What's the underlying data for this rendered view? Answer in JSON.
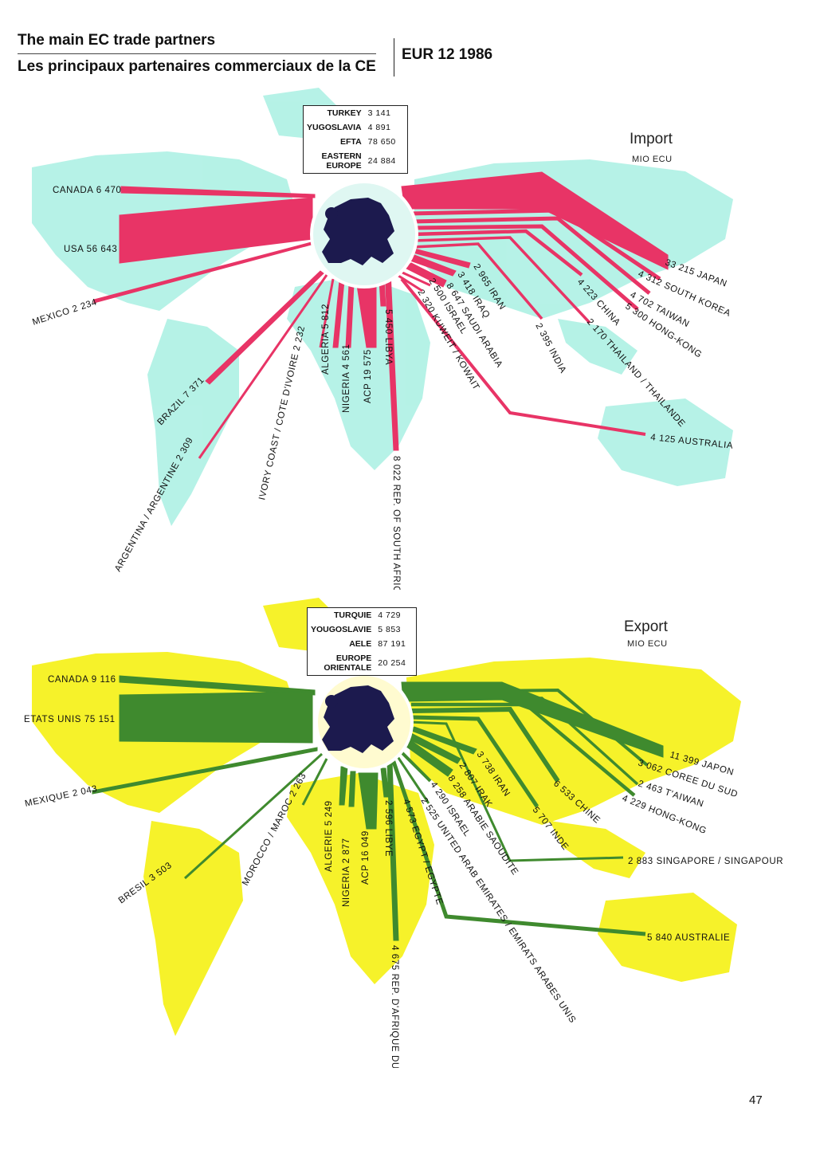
{
  "header": {
    "title_en": "The main EC trade partners",
    "title_fr": "Les principaux partenaires commerciaux de la CE",
    "region_year": "EUR 12 1986"
  },
  "colors": {
    "import_flow": "#e83466",
    "export_flow": "#3f8a2e",
    "import_map": "#aef1e4",
    "export_map": "#f6f22a",
    "europe": "#1c1a4e"
  },
  "import": {
    "title": "Import",
    "unit": "MIO ECU",
    "box": [
      {
        "name": "TURKEY",
        "value": "3 141"
      },
      {
        "name": "YUGOSLAVIA",
        "value": "4 891"
      },
      {
        "name": "EFTA",
        "value": "78 650"
      },
      {
        "name": "EASTERN EUROPE",
        "value": "24 884"
      }
    ],
    "partners": [
      {
        "name": "CANADA",
        "value": "6 470"
      },
      {
        "name": "USA",
        "value": "56 643"
      },
      {
        "name": "MEXICO",
        "value": "2 234"
      },
      {
        "name": "BRAZIL",
        "value": "7 371"
      },
      {
        "name": "ARGENTINA / ARGENTINE",
        "value": "2 309"
      },
      {
        "name": "IVORY COAST / COTE D'IVOIRE",
        "value": "2 232"
      },
      {
        "name": "ALGERIA",
        "value": "5 812"
      },
      {
        "name": "NIGERIA",
        "value": "4 561"
      },
      {
        "name": "ACP",
        "value": "19 575"
      },
      {
        "name": "LIBYA",
        "value": "5 450"
      },
      {
        "name": "REP. OF SOUTH AFRICA",
        "value": "8 022"
      },
      {
        "name": "KUWEIT / KOWAIT",
        "value": "2 320"
      },
      {
        "name": "ISRAEL",
        "value": "2 500"
      },
      {
        "name": "SAUDI ARABIA",
        "value": "8 647"
      },
      {
        "name": "IRAQ",
        "value": "3 418"
      },
      {
        "name": "IRAN",
        "value": "2 965"
      },
      {
        "name": "INDIA",
        "value": "2 395"
      },
      {
        "name": "THAILAND / THAILANDE",
        "value": "2 170"
      },
      {
        "name": "CHINA",
        "value": "4 223"
      },
      {
        "name": "HONG-KONG",
        "value": "5 300"
      },
      {
        "name": "TAIWAN",
        "value": "4 702"
      },
      {
        "name": "SOUTH KOREA",
        "value": "4 312"
      },
      {
        "name": "JAPAN",
        "value": "33 215"
      },
      {
        "name": "AUSTRALIA",
        "value": "4 125"
      }
    ]
  },
  "export": {
    "title": "Export",
    "unit": "MIO ECU",
    "box": [
      {
        "name": "TURQUIE",
        "value": "4 729"
      },
      {
        "name": "YOUGOSLAVIE",
        "value": "5 853"
      },
      {
        "name": "AELE",
        "value": "87 191"
      },
      {
        "name": "EUROPE ORIENTALE",
        "value": "20 254"
      }
    ],
    "partners": [
      {
        "name": "CANADA",
        "value": "9 116"
      },
      {
        "name": "ETATS UNIS",
        "value": "75 151"
      },
      {
        "name": "MEXIQUE",
        "value": "2 043"
      },
      {
        "name": "BRESIL",
        "value": "3 503"
      },
      {
        "name": "MOROCCO / MAROC",
        "value": "2 263"
      },
      {
        "name": "ALGERIE",
        "value": "5 249"
      },
      {
        "name": "NIGERIA",
        "value": "2 877"
      },
      {
        "name": "ACP",
        "value": "16 049"
      },
      {
        "name": "LIBYE",
        "value": "2 596"
      },
      {
        "name": "REP. D'AFRIQUE DU SUD",
        "value": "4 675"
      },
      {
        "name": "EGYPT / EGYPTE",
        "value": "4 573"
      },
      {
        "name": "UNITED ARAB EMIRATES / EMIRATS ARABES UNIS",
        "value": "2 525"
      },
      {
        "name": "ISRAEL",
        "value": "4 290"
      },
      {
        "name": "ARABIE SAOUDITE",
        "value": "8 258"
      },
      {
        "name": "IRAK",
        "value": "2 807"
      },
      {
        "name": "IRAN",
        "value": "3 738"
      },
      {
        "name": "INDE",
        "value": "5 707"
      },
      {
        "name": "CHINE",
        "value": "6 533"
      },
      {
        "name": "HONG-KONG",
        "value": "4 229"
      },
      {
        "name": "T'AIWAN",
        "value": "2 463"
      },
      {
        "name": "COREE DU SUD",
        "value": "3 062"
      },
      {
        "name": "JAPON",
        "value": "11 399"
      },
      {
        "name": "SINGAPORE / SINGAPOUR",
        "value": "2 883"
      },
      {
        "name": "AUSTRALIE",
        "value": "5 840"
      }
    ]
  },
  "page_number": "47"
}
